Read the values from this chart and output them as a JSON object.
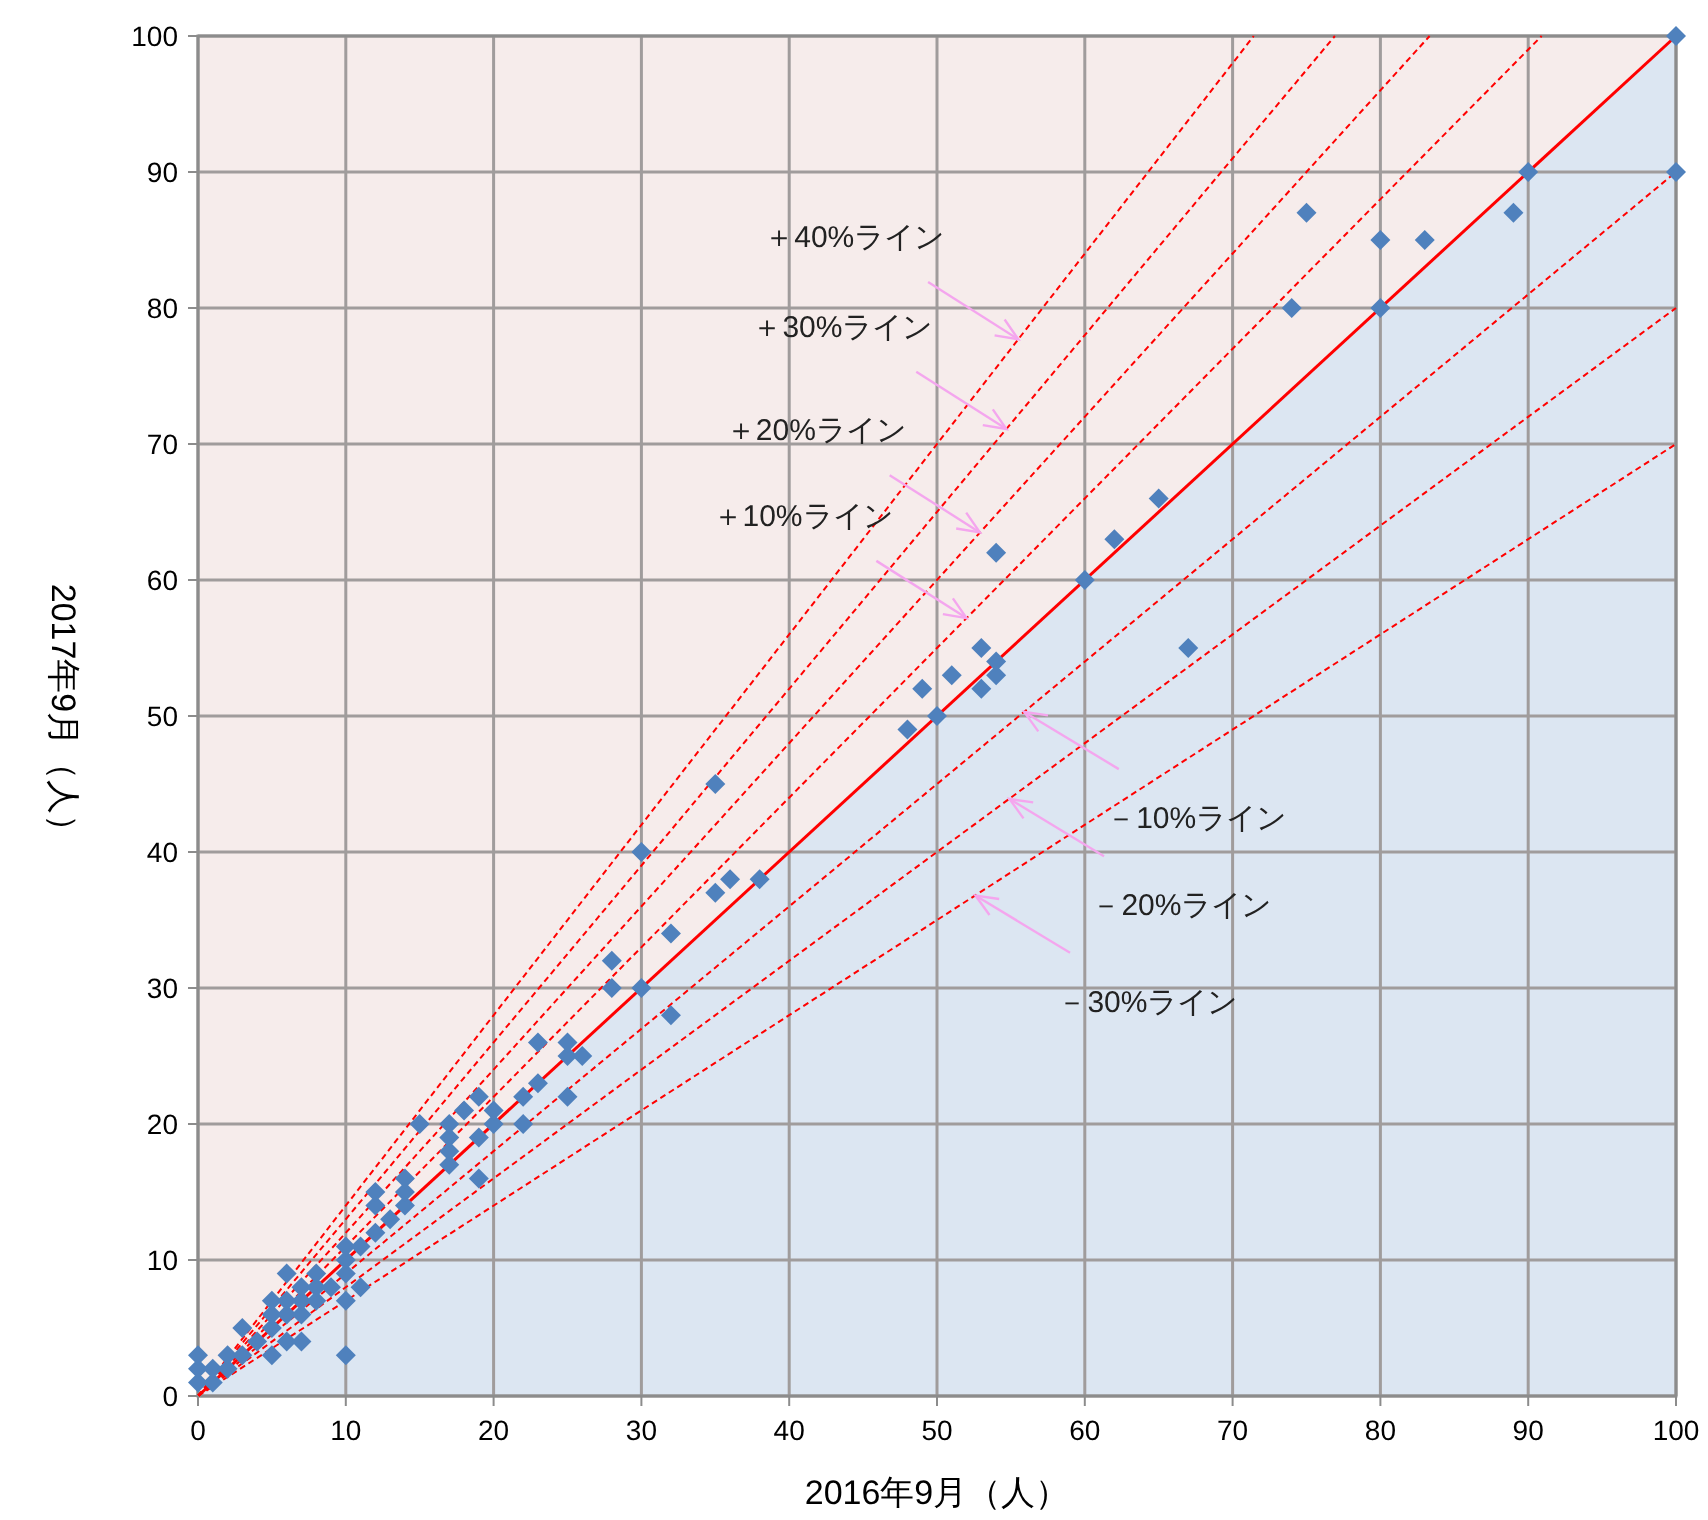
{
  "chart_data": {
    "type": "scatter",
    "xlabel": "2016年9月（人）",
    "ylabel": "2017年9月（人）",
    "xlim": [
      0,
      100
    ],
    "ylim": [
      0,
      100
    ],
    "xticks": [
      0,
      10,
      20,
      30,
      40,
      50,
      60,
      70,
      80,
      90,
      100
    ],
    "yticks": [
      0,
      10,
      20,
      30,
      40,
      50,
      60,
      70,
      80,
      90,
      100
    ],
    "grid": true,
    "series": [
      {
        "type": "line",
        "color": "#ff0000",
        "line_style": "solid",
        "x": [
          0,
          100
        ],
        "values": [
          0,
          100
        ]
      },
      {
        "type": "line",
        "color": "#ff0000",
        "line_style": "dashed",
        "x": [
          0,
          71.43
        ],
        "values": [
          0,
          100
        ]
      },
      {
        "type": "line",
        "color": "#ff0000",
        "line_style": "dashed",
        "x": [
          0,
          76.92
        ],
        "values": [
          0,
          100
        ]
      },
      {
        "type": "line",
        "color": "#ff0000",
        "line_style": "dashed",
        "x": [
          0,
          83.33
        ],
        "values": [
          0,
          100
        ]
      },
      {
        "type": "line",
        "color": "#ff0000",
        "line_style": "dashed",
        "x": [
          0,
          90.91
        ],
        "values": [
          0,
          100
        ]
      },
      {
        "type": "line",
        "color": "#ff0000",
        "line_style": "dashed",
        "x": [
          0,
          100
        ],
        "values": [
          0,
          90
        ]
      },
      {
        "type": "line",
        "color": "#ff0000",
        "line_style": "dashed",
        "x": [
          0,
          100
        ],
        "values": [
          0,
          80
        ]
      },
      {
        "type": "line",
        "color": "#ff0000",
        "line_style": "dashed",
        "x": [
          0,
          100
        ],
        "values": [
          0,
          70
        ]
      },
      {
        "type": "scatter",
        "color": "#4f81bd",
        "marker": "diamond",
        "x": [
          0,
          0,
          0,
          1,
          1,
          2,
          2,
          3,
          3,
          4,
          5,
          5,
          5,
          5,
          6,
          6,
          6,
          6,
          7,
          7,
          7,
          7,
          8,
          8,
          8,
          9,
          10,
          10,
          10,
          10,
          10,
          11,
          11,
          12,
          12,
          12,
          13,
          14,
          14,
          14,
          15,
          17,
          17,
          17,
          17,
          18,
          19,
          19,
          19,
          20,
          20,
          22,
          22,
          23,
          23,
          25,
          25,
          25,
          26,
          28,
          28,
          30,
          30,
          32,
          32,
          35,
          35,
          36,
          38,
          48,
          49,
          50,
          51,
          53,
          53,
          54,
          54,
          54,
          60,
          62,
          65,
          67,
          74,
          75,
          80,
          80,
          83,
          89,
          90,
          100,
          100
        ],
        "values": [
          1,
          2,
          3,
          1,
          2,
          2,
          3,
          3,
          5,
          4,
          3,
          5,
          6,
          7,
          4,
          6,
          7,
          9,
          4,
          6,
          7,
          8,
          7,
          8,
          9,
          8,
          3,
          7,
          9,
          10,
          11,
          8,
          11,
          12,
          14,
          15,
          13,
          14,
          15,
          16,
          20,
          17,
          18,
          19,
          20,
          21,
          16,
          19,
          22,
          20,
          21,
          20,
          22,
          23,
          26,
          22,
          25,
          26,
          25,
          30,
          32,
          30,
          40,
          28,
          34,
          37,
          45,
          38,
          38,
          49,
          52,
          50,
          53,
          52,
          55,
          53,
          54,
          62,
          60,
          63,
          66,
          55,
          80,
          87,
          80,
          85,
          85,
          87,
          90,
          90,
          100
        ]
      }
    ],
    "annotations": [
      {
        "text": "＋40%ライン",
        "x": 55.5,
        "y": 77.7
      },
      {
        "text": "＋30%ライン",
        "x": 54.7,
        "y": 71.1
      },
      {
        "text": "＋20%ライン",
        "x": 52.9,
        "y": 63.5
      },
      {
        "text": "＋10%ライン",
        "x": 52,
        "y": 57.2
      },
      {
        "text": "－10%ライン",
        "x": 55.9,
        "y": 50.3
      },
      {
        "text": "－20%ライン",
        "x": 54.9,
        "y": 43.9
      },
      {
        "text": "－30%ライン",
        "x": 52.6,
        "y": 36.8
      }
    ]
  }
}
